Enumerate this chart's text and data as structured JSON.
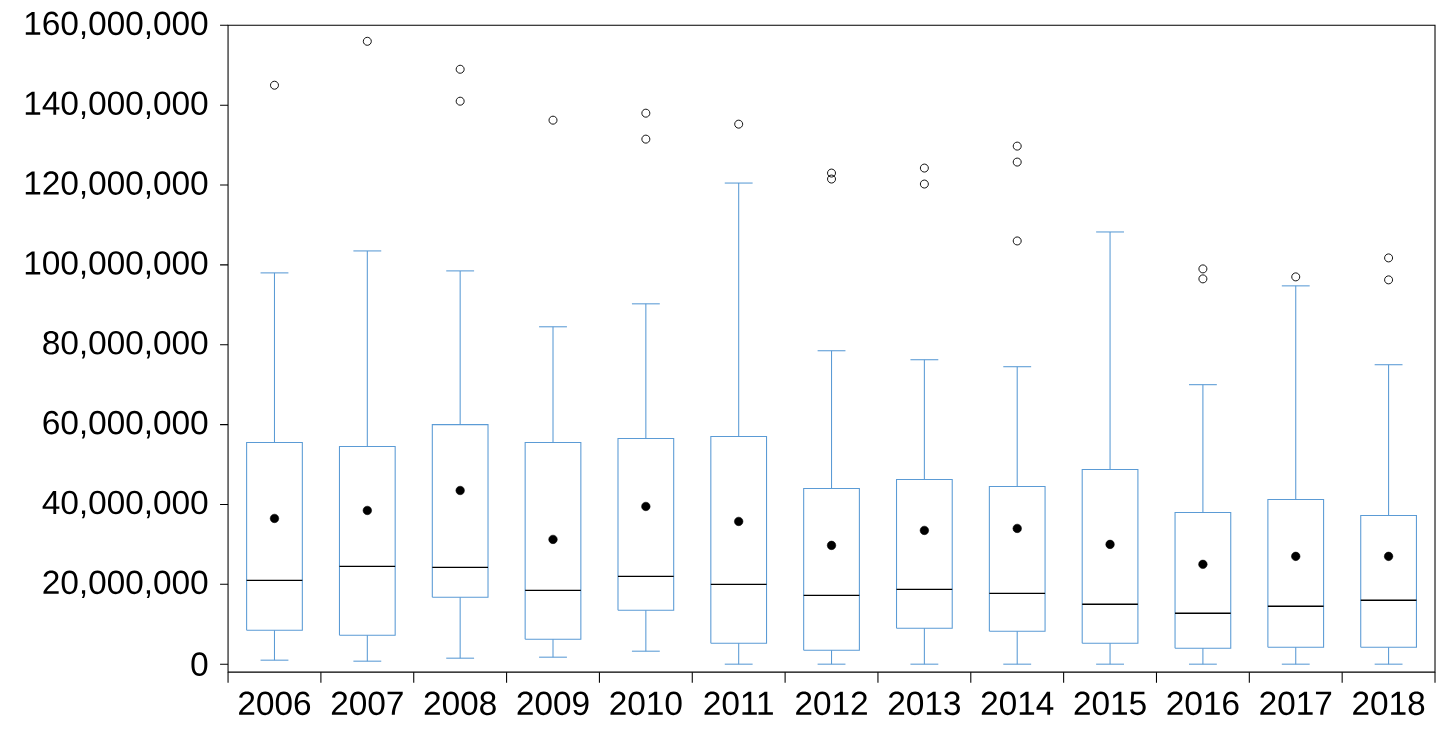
{
  "chart_data": {
    "type": "box",
    "categories": [
      "2006",
      "2007",
      "2008",
      "2009",
      "2010",
      "2011",
      "2012",
      "2013",
      "2014",
      "2015",
      "2016",
      "2017",
      "2018"
    ],
    "series": [
      {
        "color": "#5b9bd5",
        "boxes": [
          {
            "low": 1000000,
            "q1": 8500000,
            "median": 21000000,
            "q3": 55500000,
            "high": 98000000,
            "mean": 36500000,
            "outliers": [
              145000000
            ]
          },
          {
            "low": 750000,
            "q1": 7250000,
            "median": 24500000,
            "q3": 54500000,
            "high": 103500000,
            "mean": 38500000,
            "outliers": [
              156000000
            ]
          },
          {
            "low": 1500000,
            "q1": 16750000,
            "median": 24250000,
            "q3": 60000000,
            "high": 98500000,
            "mean": 43500000,
            "outliers": [
              149000000,
              141000000
            ]
          },
          {
            "low": 1750000,
            "q1": 6250000,
            "median": 18500000,
            "q3": 55500000,
            "high": 84500000,
            "mean": 31250000,
            "outliers": [
              136250000
            ]
          },
          {
            "low": 3250000,
            "q1": 13500000,
            "median": 22000000,
            "q3": 56500000,
            "high": 90250000,
            "mean": 39500000,
            "outliers": [
              138000000,
              131500000
            ]
          },
          {
            "low": 0,
            "q1": 5250000,
            "median": 20000000,
            "q3": 57000000,
            "high": 120500000,
            "mean": 35750000,
            "outliers": [
              135250000
            ]
          },
          {
            "low": 0,
            "q1": 3500000,
            "median": 17250000,
            "q3": 44000000,
            "high": 78500000,
            "mean": 29750000,
            "outliers": [
              123000000,
              121500000
            ]
          },
          {
            "low": 0,
            "q1": 9000000,
            "median": 18750000,
            "q3": 46250000,
            "high": 76250000,
            "mean": 33500000,
            "outliers": [
              124250000,
              120250000
            ]
          },
          {
            "low": 0,
            "q1": 8250000,
            "median": 17750000,
            "q3": 44500000,
            "high": 74500000,
            "mean": 34000000,
            "outliers": [
              129750000,
              125750000,
              106000000
            ]
          },
          {
            "low": 0,
            "q1": 5250000,
            "median": 15000000,
            "q3": 48750000,
            "high": 108250000,
            "mean": 30000000
          },
          {
            "low": 0,
            "q1": 4000000,
            "median": 12750000,
            "q3": 38000000,
            "high": 70000000,
            "mean": 25000000,
            "outliers": [
              99000000,
              96500000
            ]
          },
          {
            "low": 0,
            "q1": 4250000,
            "median": 14500000,
            "q3": 41250000,
            "high": 94750000,
            "mean": 27000000,
            "outliers": [
              97000000
            ]
          },
          {
            "low": 0,
            "q1": 4250000,
            "median": 16000000,
            "q3": 37250000,
            "high": 75000000,
            "mean": 27000000,
            "outliers": [
              101750000,
              96250000
            ]
          }
        ]
      }
    ],
    "ylim": [
      -2000000,
      160000000
    ],
    "yticks": [
      {
        "value": 0,
        "label": "0"
      },
      {
        "value": 20000000,
        "label": "20,000,000"
      },
      {
        "value": 40000000,
        "label": "40,000,000"
      },
      {
        "value": 60000000,
        "label": "60,000,000"
      },
      {
        "value": 80000000,
        "label": "80,000,000"
      },
      {
        "value": 100000000,
        "label": "100,000,000"
      },
      {
        "value": 120000000,
        "label": "120,000,000"
      },
      {
        "value": 140000000,
        "label": "140,000,000"
      },
      {
        "value": 160000000,
        "label": "160,000,000"
      }
    ],
    "grid": false
  }
}
